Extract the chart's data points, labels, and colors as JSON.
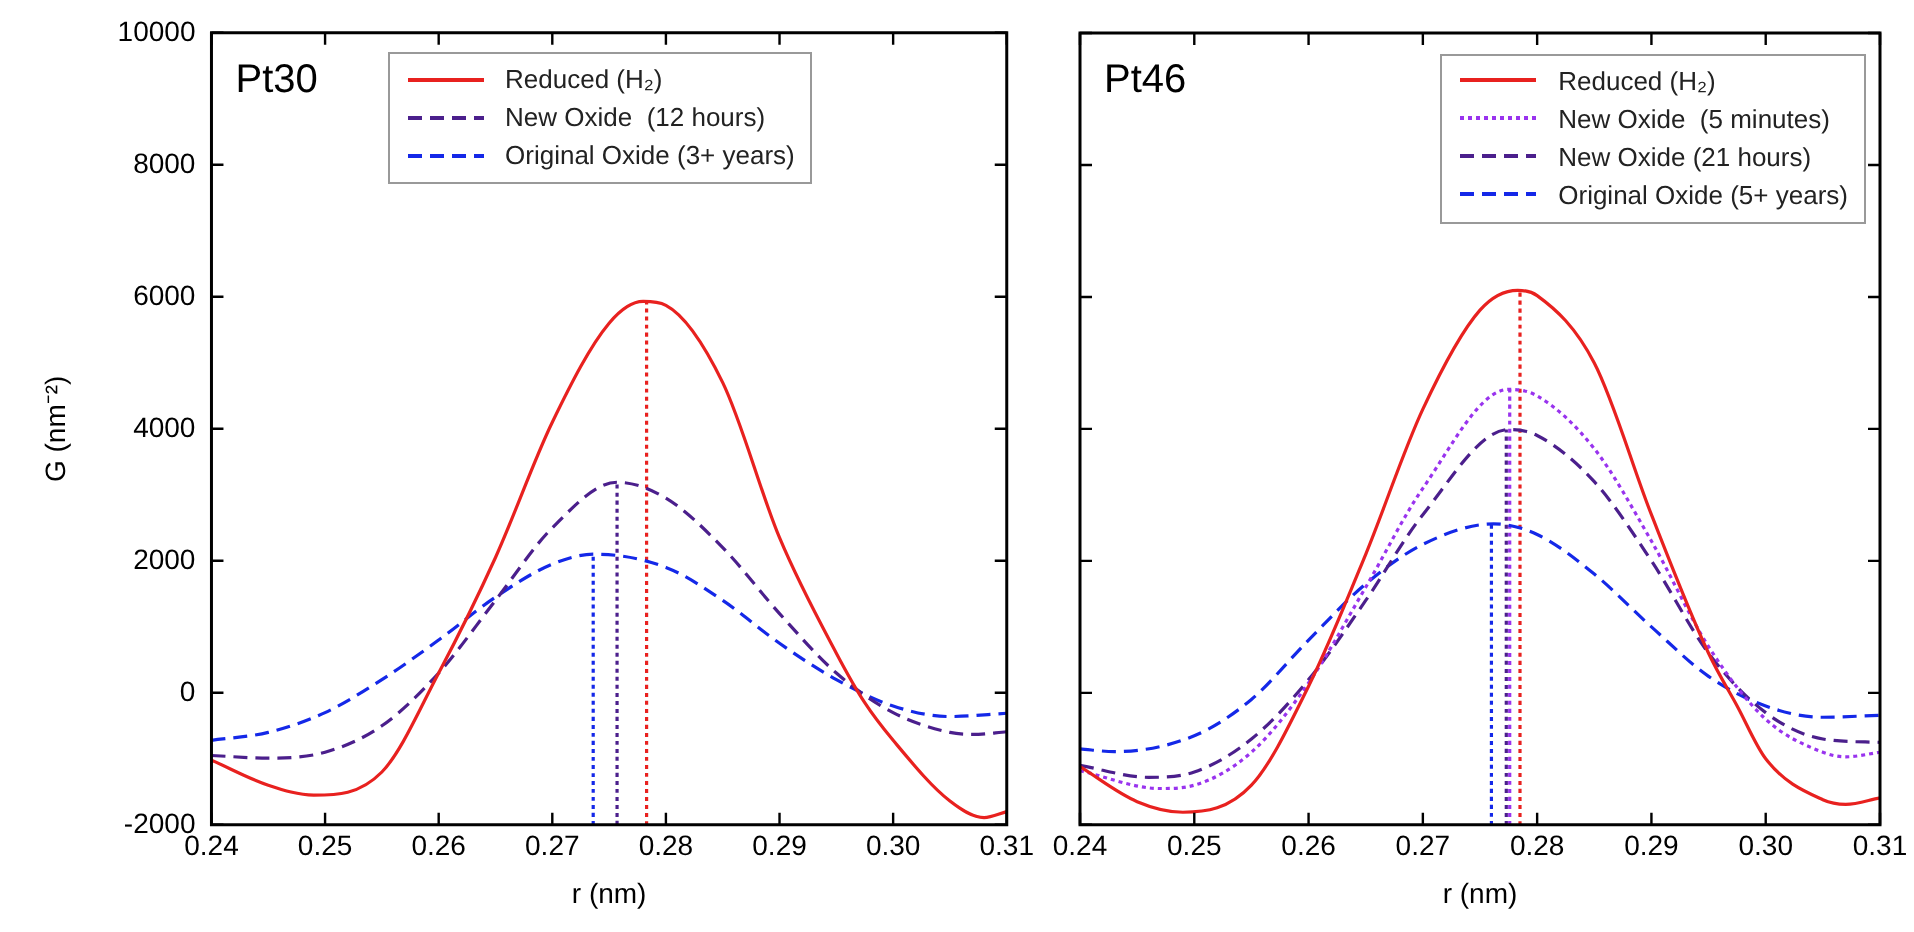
{
  "chart_data": [
    {
      "type": "line",
      "ylabel": "G (nm⁻²)",
      "xlabel": "r (nm)",
      "annotations": [
        "Pt30"
      ],
      "xlim": [
        0.24,
        0.31
      ],
      "xticks": [
        0.24,
        0.25,
        0.26,
        0.27,
        0.28,
        0.29,
        {
          "value": 0.3,
          "label": "0.30"
        },
        0.31
      ],
      "ylim": [
        -2000,
        10000
      ],
      "yticks": [
        -2000,
        0,
        2000,
        4000,
        6000,
        8000,
        10000
      ],
      "grid": false,
      "legend": "top right",
      "marker": "none",
      "series": [
        {
          "name": "Reduced (H₂)",
          "color": "#e8211f",
          "line_style": "solid",
          "x": [
            0.24,
            0.245,
            0.249,
            0.255,
            0.26,
            0.265,
            0.27,
            0.275,
            0.278,
            0.28,
            0.285,
            0.29,
            0.295,
            0.2975,
            0.3,
            0.305,
            0.308,
            0.31
          ],
          "values": [
            -1020,
            -1400,
            -1550,
            -1200,
            300,
            2050,
            4100,
            5600,
            5930,
            5870,
            4700,
            2350,
            600,
            -150,
            -720,
            -1640,
            -1890,
            -1800
          ]
        },
        {
          "name": "New Oxide  (12 hours)",
          "color": "#4b1f8c",
          "line_style": "dashed",
          "x": [
            0.24,
            0.245,
            0.25,
            0.255,
            0.26,
            0.265,
            0.27,
            0.2757,
            0.28,
            0.285,
            0.29,
            0.295,
            0.3,
            0.305,
            0.307,
            0.31
          ],
          "values": [
            -950,
            -990,
            -900,
            -500,
            300,
            1400,
            2500,
            3190,
            2950,
            2200,
            1200,
            300,
            -300,
            -600,
            -630,
            -590
          ]
        },
        {
          "name": "Original Oxide (3+ years)",
          "color": "#1428e8",
          "line_style": "dashed",
          "x": [
            0.24,
            0.245,
            0.25,
            0.255,
            0.26,
            0.265,
            0.27,
            0.2737,
            0.28,
            0.285,
            0.29,
            0.295,
            0.3,
            0.305,
            0.31
          ],
          "values": [
            -720,
            -600,
            -300,
            200,
            800,
            1450,
            1950,
            2100,
            1900,
            1400,
            750,
            200,
            -200,
            -360,
            -310
          ]
        },
        {
          "color": "#e8211f",
          "line_style": "dotted",
          "x": [
            0.2783,
            0.2783
          ],
          "values": [
            -2000,
            5930
          ]
        },
        {
          "color": "#4b1f8c",
          "line_style": "dotted",
          "x": [
            0.2757,
            0.2757
          ],
          "values": [
            -2000,
            3190
          ]
        },
        {
          "color": "#1428e8",
          "line_style": "dotted",
          "x": [
            0.2736,
            0.2736
          ],
          "values": [
            -2000,
            2100
          ]
        }
      ]
    },
    {
      "type": "line",
      "xlabel": "r (nm)",
      "annotations": [
        "Pt46"
      ],
      "tick_labels": "x",
      "xlim": [
        0.24,
        0.31
      ],
      "xticks": [
        0.24,
        0.25,
        0.26,
        0.27,
        0.28,
        0.29,
        {
          "value": 0.3,
          "label": "0.30"
        },
        0.31
      ],
      "ylim": [
        -2000,
        10000
      ],
      "yticks": [
        -2000,
        0,
        2000,
        4000,
        6000,
        8000,
        10000
      ],
      "grid": false,
      "legend": "top right",
      "marker": "none",
      "series": [
        {
          "name": "Reduced (H₂)",
          "color": "#e8211f",
          "line_style": "solid",
          "x": [
            0.24,
            0.245,
            0.249,
            0.255,
            0.26,
            0.265,
            0.27,
            0.275,
            0.2783,
            0.28,
            0.285,
            0.29,
            0.295,
            0.2975,
            0.3,
            0.305,
            0.307,
            0.31
          ],
          "values": [
            -1120,
            -1650,
            -1810,
            -1400,
            100,
            2100,
            4300,
            5800,
            6100,
            6020,
            5000,
            2700,
            600,
            -200,
            -1000,
            -1620,
            -1690,
            -1590
          ]
        },
        {
          "name": "New Oxide  (5 minutes)",
          "color": "#9933ee",
          "line_style": "dotted",
          "x": [
            0.24,
            0.247,
            0.25,
            0.255,
            0.26,
            0.265,
            0.27,
            0.2775,
            0.28,
            0.285,
            0.29,
            0.295,
            0.3,
            0.305,
            0.307,
            0.31
          ],
          "values": [
            -1180,
            -1450,
            -1400,
            -900,
            150,
            1600,
            3100,
            4600,
            4500,
            3700,
            2300,
            700,
            -400,
            -900,
            -970,
            -900
          ]
        },
        {
          "name": "New Oxide (21 hours)",
          "color": "#4b1f8c",
          "line_style": "dashed",
          "x": [
            0.24,
            0.246,
            0.25,
            0.255,
            0.26,
            0.265,
            0.27,
            0.2775,
            0.28,
            0.285,
            0.29,
            0.295,
            0.3,
            0.305,
            0.31
          ],
          "values": [
            -1100,
            -1280,
            -1200,
            -700,
            200,
            1400,
            2700,
            3990,
            3900,
            3200,
            2000,
            600,
            -300,
            -700,
            -750
          ]
        },
        {
          "name": "Original Oxide (5+ years)",
          "color": "#1428e8",
          "line_style": "dashed",
          "x": [
            0.24,
            0.243,
            0.25,
            0.255,
            0.26,
            0.265,
            0.27,
            0.2762,
            0.28,
            0.285,
            0.29,
            0.295,
            0.3,
            0.305,
            0.31
          ],
          "values": [
            -850,
            -890,
            -650,
            -100,
            800,
            1650,
            2250,
            2560,
            2400,
            1800,
            1000,
            250,
            -200,
            -370,
            -340
          ]
        },
        {
          "color": "#e8211f",
          "line_style": "dotted",
          "x": [
            0.2785,
            0.2785
          ],
          "values": [
            -2000,
            6100
          ]
        },
        {
          "color": "#9933ee",
          "line_style": "dotted",
          "x": [
            0.2776,
            0.2776
          ],
          "values": [
            -2000,
            4600
          ]
        },
        {
          "color": "#4b1f8c",
          "line_style": "dotted",
          "x": [
            0.2773,
            0.2773
          ],
          "values": [
            -2000,
            3990
          ]
        },
        {
          "color": "#1428e8",
          "line_style": "dotted",
          "x": [
            0.276,
            0.276
          ],
          "values": [
            -2000,
            2560
          ]
        }
      ]
    }
  ]
}
